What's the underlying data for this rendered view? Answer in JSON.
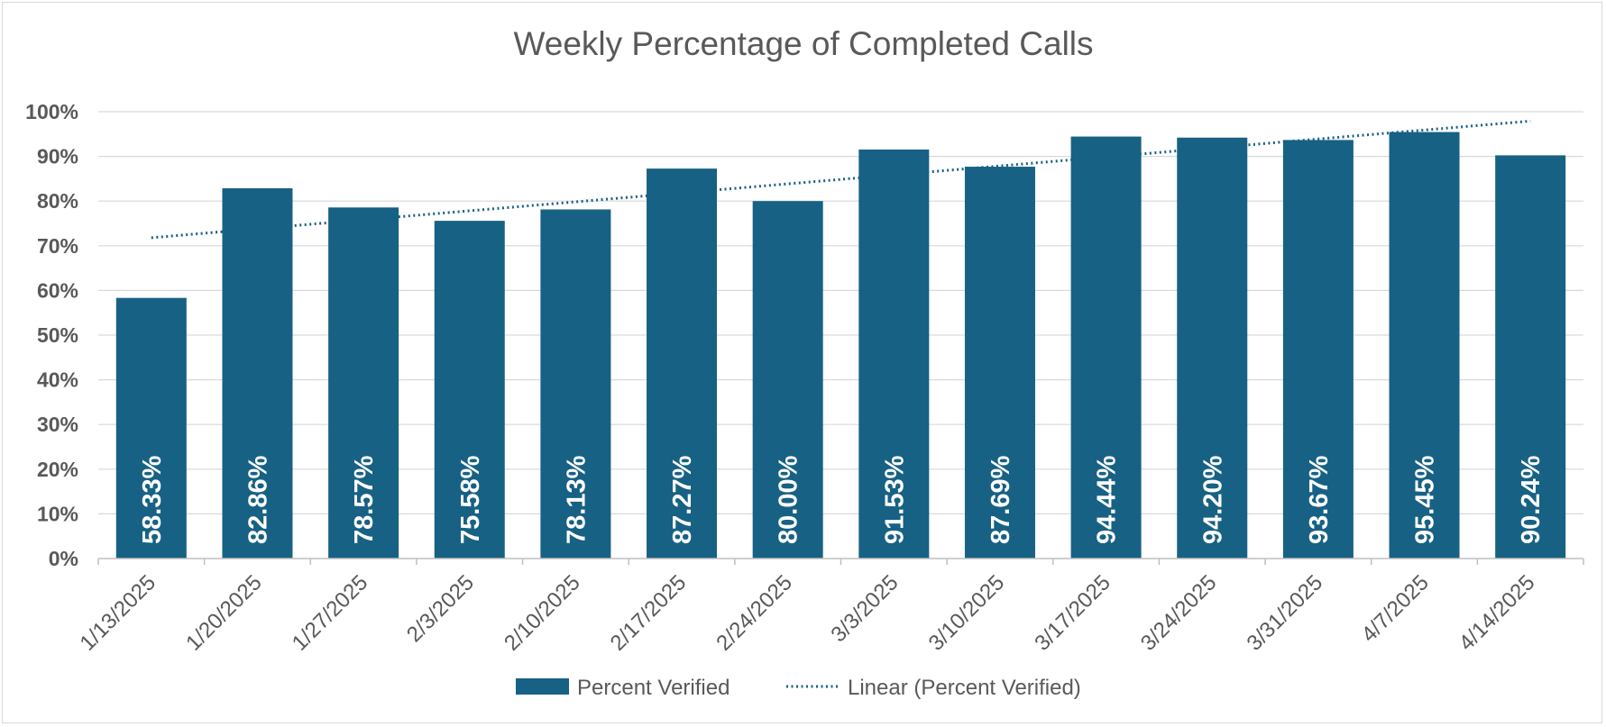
{
  "chart_data": {
    "type": "bar",
    "title": "Weekly Percentage of Completed Calls",
    "categories": [
      "1/13/2025",
      "1/20/2025",
      "1/27/2025",
      "2/3/2025",
      "2/10/2025",
      "2/17/2025",
      "2/24/2025",
      "3/3/2025",
      "3/10/2025",
      "3/17/2025",
      "3/24/2025",
      "3/31/2025",
      "4/7/2025",
      "4/14/2025"
    ],
    "series": [
      {
        "name": "Percent Verified",
        "color": "#176184",
        "values": [
          58.33,
          82.86,
          78.57,
          75.58,
          78.13,
          87.27,
          80.0,
          91.53,
          87.69,
          94.44,
          94.2,
          93.67,
          95.45,
          90.24
        ],
        "labels": [
          "58.33%",
          "82.86%",
          "78.57%",
          "75.58%",
          "78.13%",
          "87.27%",
          "80.00%",
          "91.53%",
          "87.69%",
          "94.44%",
          "94.20%",
          "93.67%",
          "95.45%",
          "90.24%"
        ]
      }
    ],
    "trendline": {
      "name": "Linear (Percent Verified)",
      "type": "linear",
      "style": "dotted",
      "color": "#176184"
    },
    "y_ticks": [
      "0%",
      "10%",
      "20%",
      "30%",
      "40%",
      "50%",
      "60%",
      "70%",
      "80%",
      "90%",
      "100%"
    ],
    "ylim": [
      0,
      100
    ],
    "xlabel": "",
    "ylabel": "",
    "grid": true,
    "legend_position": "bottom"
  }
}
